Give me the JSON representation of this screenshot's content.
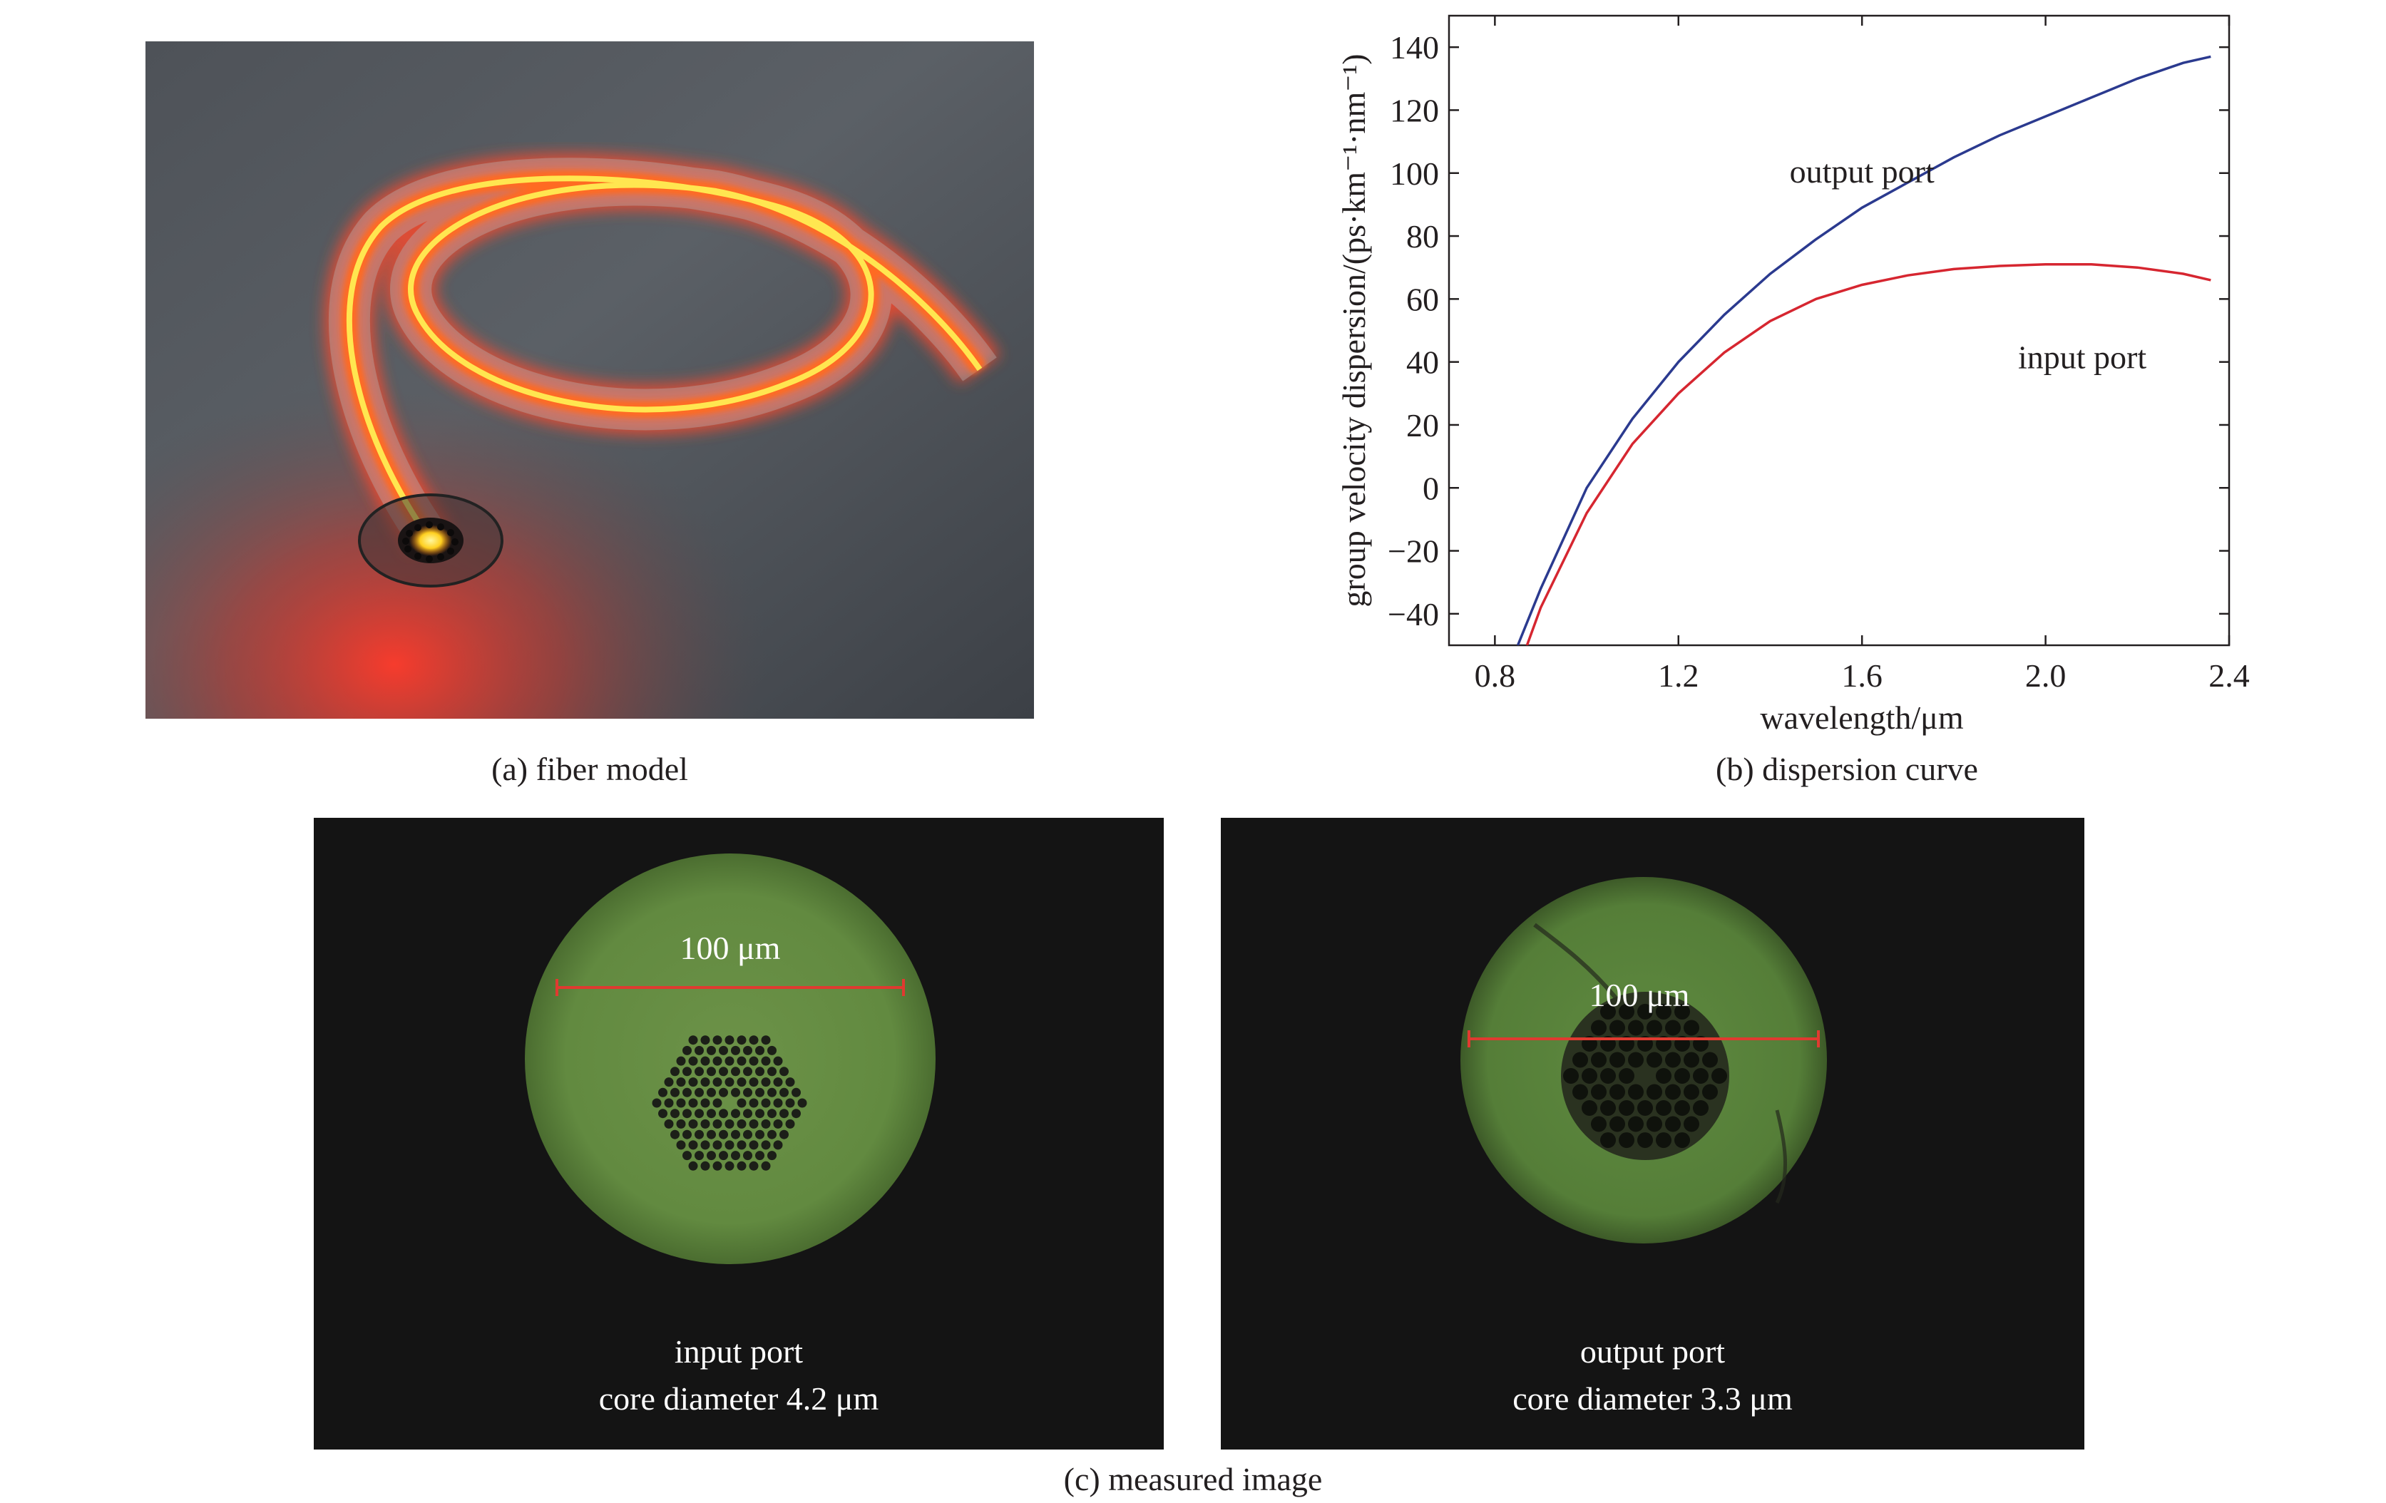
{
  "panel_a": {
    "caption": "(a) fiber model"
  },
  "panel_b": {
    "caption": "(b) dispersion curve"
  },
  "panel_c": {
    "caption": "(c) measured image",
    "input": {
      "scale_label": "100 μm",
      "port_label": "input port",
      "core_label": "core diameter 4.2 μm"
    },
    "output": {
      "scale_label": "100 μm",
      "port_label": "output port",
      "core_label": "core diameter 3.3 μm"
    }
  },
  "chart_data": {
    "type": "line",
    "xlabel": "wavelength/μm",
    "ylabel": "group velocity dispersion/(ps·km⁻¹·nm⁻¹)",
    "xlim": [
      0.7,
      2.4
    ],
    "ylim": [
      -50,
      150
    ],
    "xticks": [
      0.8,
      1.2,
      1.6,
      2.0,
      2.4
    ],
    "xtick_labels": [
      "0.8",
      "1.2",
      "1.6",
      "2.0",
      "2.4"
    ],
    "yticks": [
      -40,
      -20,
      0,
      20,
      40,
      60,
      80,
      100,
      120,
      140
    ],
    "ytick_labels": [
      "−40",
      "−20",
      "0",
      "20",
      "40",
      "60",
      "80",
      "100",
      "120",
      "140"
    ],
    "grid": false,
    "series": [
      {
        "name": "output port",
        "color": "#2b3a8f",
        "x": [
          0.85,
          0.9,
          1.0,
          1.1,
          1.2,
          1.3,
          1.4,
          1.5,
          1.6,
          1.7,
          1.8,
          1.9,
          2.0,
          2.1,
          2.2,
          2.3,
          2.36
        ],
        "y": [
          -50,
          -32,
          0,
          22,
          40,
          55,
          68,
          79,
          89,
          97,
          105,
          112,
          118,
          124,
          130,
          135,
          137
        ]
      },
      {
        "name": "input port",
        "color": "#d62630",
        "x": [
          0.87,
          0.9,
          1.0,
          1.1,
          1.2,
          1.3,
          1.4,
          1.5,
          1.6,
          1.7,
          1.8,
          1.9,
          2.0,
          2.1,
          2.2,
          2.3,
          2.36
        ],
        "y": [
          -50,
          -38,
          -8,
          14,
          30,
          43,
          53,
          60,
          64.5,
          67.5,
          69.5,
          70.5,
          71,
          71,
          70,
          68,
          66
        ]
      }
    ],
    "annotations": [
      {
        "text": "output port",
        "x": 1.6,
        "y": 97
      },
      {
        "text": "input port",
        "x": 2.08,
        "y": 38
      }
    ]
  }
}
